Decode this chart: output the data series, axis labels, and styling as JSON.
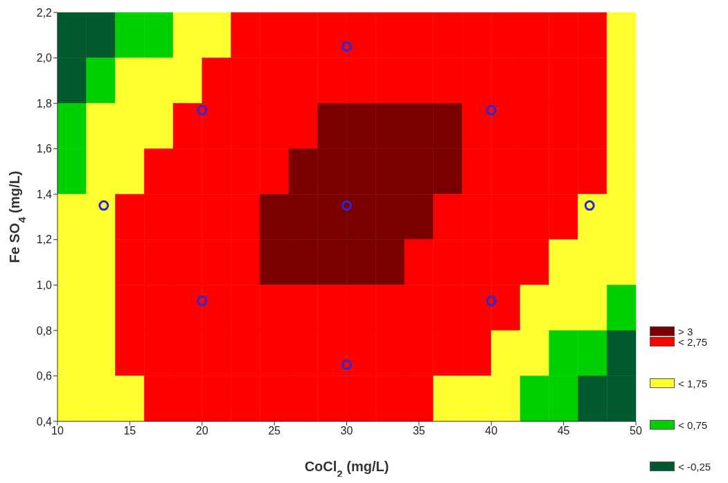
{
  "chart_data": [
    {
      "type": "heatmap",
      "tick_labels": false,
      "categories": [
        null,
        null,
        null,
        null,
        null,
        null,
        null,
        null,
        null,
        null,
        null,
        null,
        null,
        null,
        null,
        null,
        null,
        null,
        null,
        null
      ],
      "y_categories": [
        null,
        null,
        null,
        null,
        null,
        null,
        null,
        null,
        null
      ],
      "cells": [
        [
          -0.25,
          -0.25,
          0.75,
          0.75,
          1.75,
          1.75,
          2.75,
          2.75,
          2.75,
          2.75,
          2.75,
          2.75,
          2.75,
          2.75,
          2.75,
          2.75,
          2.75,
          2.75,
          2.75,
          1.75
        ],
        [
          -0.25,
          0.75,
          1.75,
          1.75,
          1.75,
          2.75,
          2.75,
          2.75,
          2.75,
          2.75,
          2.75,
          2.75,
          2.75,
          2.75,
          2.75,
          2.75,
          2.75,
          2.75,
          2.75,
          1.75
        ],
        [
          0.75,
          1.75,
          1.75,
          1.75,
          2.75,
          2.75,
          2.75,
          2.75,
          2.75,
          3,
          3,
          3,
          3,
          3,
          2.75,
          2.75,
          2.75,
          2.75,
          2.75,
          1.75
        ],
        [
          0.75,
          1.75,
          1.75,
          2.75,
          2.75,
          2.75,
          2.75,
          2.75,
          3,
          3,
          3,
          3,
          3,
          3,
          2.75,
          2.75,
          2.75,
          2.75,
          2.75,
          1.75
        ],
        [
          1.75,
          1.75,
          2.75,
          2.75,
          2.75,
          2.75,
          2.75,
          3,
          3,
          3,
          3,
          3,
          3,
          2.75,
          2.75,
          2.75,
          2.75,
          2.75,
          1.75,
          1.75
        ],
        [
          1.75,
          1.75,
          2.75,
          2.75,
          2.75,
          2.75,
          2.75,
          3,
          3,
          3,
          3,
          3,
          2.75,
          2.75,
          2.75,
          2.75,
          2.75,
          1.75,
          1.75,
          1.75
        ],
        [
          1.75,
          1.75,
          2.75,
          2.75,
          2.75,
          2.75,
          2.75,
          2.75,
          2.75,
          2.75,
          2.75,
          2.75,
          2.75,
          2.75,
          2.75,
          2.75,
          1.75,
          1.75,
          1.75,
          0.75
        ],
        [
          1.75,
          1.75,
          2.75,
          2.75,
          2.75,
          2.75,
          2.75,
          2.75,
          2.75,
          2.75,
          2.75,
          2.75,
          2.75,
          2.75,
          2.75,
          1.75,
          1.75,
          0.75,
          0.75,
          -0.25
        ],
        [
          1.75,
          1.75,
          1.75,
          2.75,
          2.75,
          2.75,
          2.75,
          2.75,
          2.75,
          2.75,
          2.75,
          2.75,
          2.75,
          1.75,
          1.75,
          1.75,
          0.75,
          0.75,
          -0.25,
          -0.25
        ]
      ],
      "cticks": [
        {
          "value": 3,
          "label": "> 3"
        },
        {
          "value": 2.75,
          "label": "< 2,75"
        },
        {
          "value": 1.75,
          "label": "< 1,75"
        },
        {
          "value": 0.75,
          "label": "< 0,75"
        },
        {
          "value": -0.25,
          "label": "< -0,25"
        }
      ]
    },
    {
      "type": "scatter",
      "xlabel": "CoCl$_{2}$ (mg/L)",
      "ylabel": "Fe SO$_{4}$ (mg/L)",
      "xlim": [
        10,
        50
      ],
      "xticks": [
        10,
        15,
        20,
        25,
        30,
        35,
        40,
        45,
        50
      ],
      "ylim": [
        0.4,
        2.2
      ],
      "yticks": [
        {
          "value": 0.4,
          "label": "0,4"
        },
        {
          "value": 0.6,
          "label": "0,6"
        },
        {
          "value": 0.8,
          "label": "0,8"
        },
        {
          "value": 1.0,
          "label": "1,0"
        },
        {
          "value": 1.2,
          "label": "1,2"
        },
        {
          "value": 1.4,
          "label": "1,4"
        },
        {
          "value": 1.6,
          "label": "1,6"
        },
        {
          "value": 1.8,
          "label": "1,8"
        },
        {
          "value": 2.0,
          "label": "2,0"
        },
        {
          "value": 2.2,
          "label": "2,2"
        }
      ],
      "marker": "circle",
      "color": "#2a2ad8",
      "x": [
        30,
        20,
        40,
        13.2,
        30,
        46.8,
        20,
        40,
        30
      ],
      "values": [
        2.05,
        1.77,
        1.77,
        1.35,
        1.35,
        1.35,
        0.93,
        0.93,
        0.65
      ]
    }
  ]
}
